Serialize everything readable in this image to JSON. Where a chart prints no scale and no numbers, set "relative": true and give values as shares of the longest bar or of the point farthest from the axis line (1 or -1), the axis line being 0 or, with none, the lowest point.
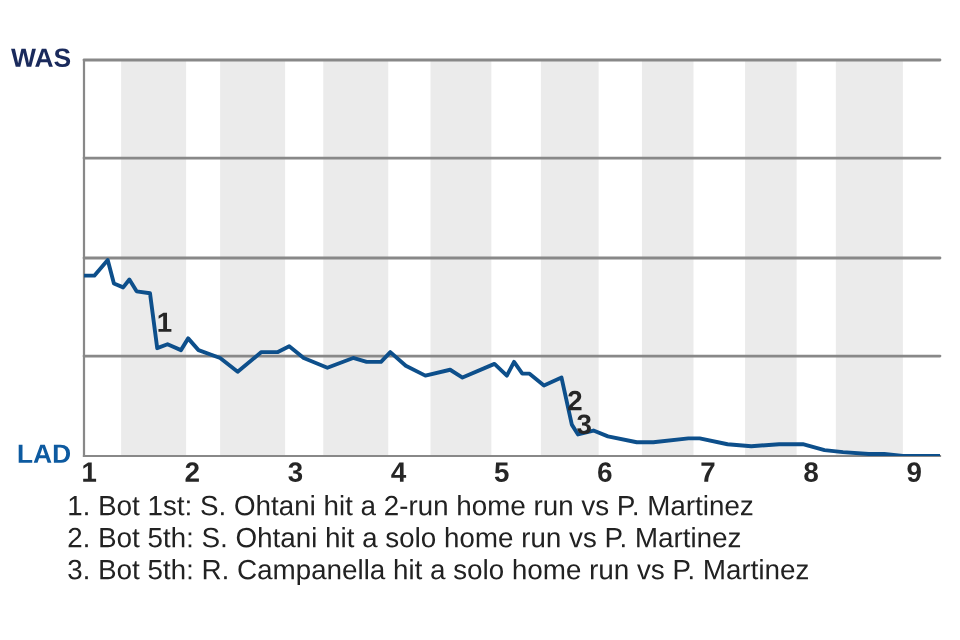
{
  "chart_data": {
    "type": "line",
    "x": [
      0.95,
      1.05,
      1.18,
      1.24,
      1.33,
      1.39,
      1.46,
      1.59,
      1.66,
      1.76,
      1.89,
      1.96,
      2.06,
      2.27,
      2.44,
      2.67,
      2.83,
      2.94,
      3.08,
      3.31,
      3.56,
      3.69,
      3.83,
      3.92,
      4.07,
      4.26,
      4.5,
      4.62,
      4.93,
      5.05,
      5.12,
      5.2,
      5.27,
      5.41,
      5.58,
      5.68,
      5.74,
      5.89,
      6.03,
      6.31,
      6.47,
      6.81,
      6.92,
      7.19,
      7.42,
      7.69,
      7.92,
      8.13,
      8.31,
      8.56,
      8.71,
      8.89,
      9.25
    ],
    "series": [
      {
        "color": "#0d4f8b",
        "values": [
          0.92,
          0.92,
          1,
          0.88,
          0.86,
          0.9,
          0.84,
          0.83,
          0.55,
          0.57,
          0.54,
          0.6,
          0.54,
          0.5,
          0.43,
          0.53,
          0.53,
          0.56,
          0.5,
          0.45,
          0.5,
          0.48,
          0.48,
          0.53,
          0.46,
          0.41,
          0.44,
          0.4,
          0.47,
          0.41,
          0.48,
          0.42,
          0.42,
          0.36,
          0.4,
          0.16,
          0.11,
          0.13,
          0.1,
          0.07,
          0.07,
          0.09,
          0.09,
          0.06,
          0.05,
          0.06,
          0.06,
          0.03,
          0.02,
          0.01,
          0.01,
          0,
          0
        ]
      }
    ],
    "relative": true,
    "xlim": [
      0.95,
      9.25
    ],
    "xticks": [
      1,
      2,
      3,
      4,
      5,
      6,
      7,
      8,
      9
    ],
    "ref_lines": [
      {
        "axis": "y",
        "value": 0.51,
        "color": "#888888"
      },
      {
        "axis": "y",
        "value": 1.01,
        "color": "#888888"
      },
      {
        "axis": "y",
        "value": 1.52,
        "color": "#888888"
      },
      {
        "axis": "y",
        "value": 2.02,
        "color": "#888888"
      }
    ],
    "bands": [
      {
        "axis": "x",
        "from": 1.31,
        "to": 1.94,
        "color": "#ebebeb"
      },
      {
        "axis": "x",
        "from": 2.27,
        "to": 2.9,
        "color": "#ebebeb"
      },
      {
        "axis": "x",
        "from": 3.27,
        "to": 3.9,
        "color": "#ebebeb"
      },
      {
        "axis": "x",
        "from": 4.31,
        "to": 4.9,
        "color": "#ebebeb"
      },
      {
        "axis": "x",
        "from": 5.38,
        "to": 5.94,
        "color": "#ebebeb"
      },
      {
        "axis": "x",
        "from": 6.36,
        "to": 6.86,
        "color": "#ebebeb"
      },
      {
        "axis": "x",
        "from": 7.36,
        "to": 7.86,
        "color": "#ebebeb"
      },
      {
        "axis": "x",
        "from": 8.24,
        "to": 8.89,
        "color": "#ebebeb"
      }
    ],
    "annotations": [
      {
        "text": "1",
        "x": 1.73,
        "y": 0.67
      },
      {
        "text": "2",
        "x": 5.71,
        "y": 0.27
      },
      {
        "text": "3",
        "x": 5.8,
        "y": 0.15
      },
      "WAS",
      "LAD",
      "1. Bot 1st: S. Ohtani hit a 2-run home run vs P. Martinez",
      "2. Bot 5th: S. Ohtani hit a solo home run vs P. Martinez",
      "3. Bot 5th: R. Campanella hit a solo home run vs P. Martinez"
    ]
  }
}
